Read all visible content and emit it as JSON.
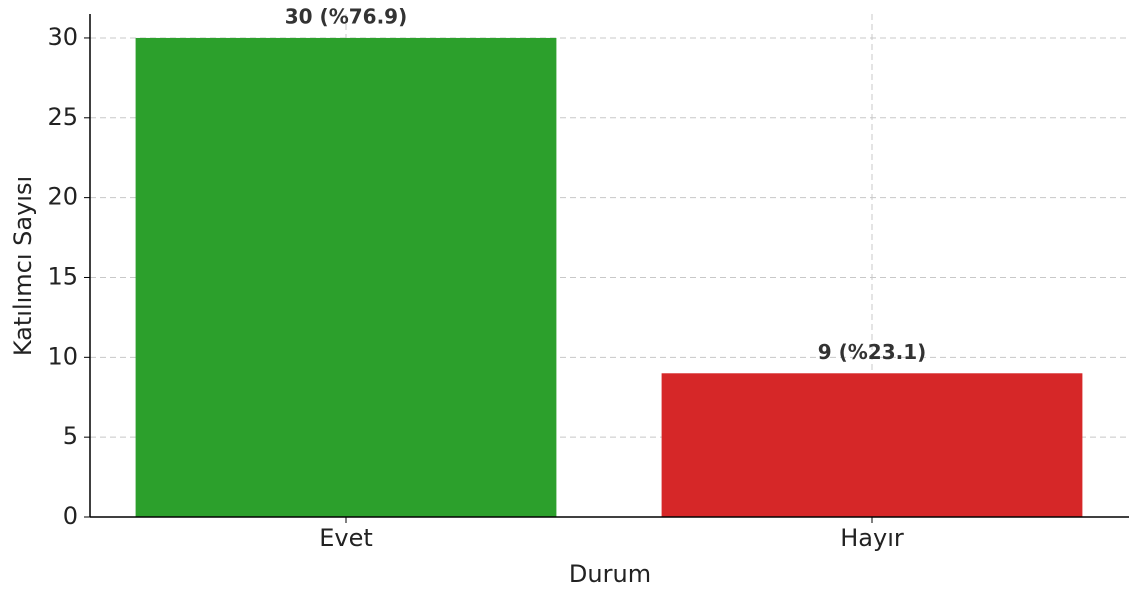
{
  "chart_data": {
    "type": "bar",
    "xlabel": "Durum",
    "ylabel": "Katılımcı Sayısı",
    "categories": [
      "Evet",
      "Hayır"
    ],
    "values": [
      30,
      9
    ],
    "value_labels": [
      "30 (%76.9)",
      "9 (%23.1)"
    ],
    "colors": [
      "#2ca02c",
      "#d62728"
    ],
    "ylim": [
      0,
      31.5
    ],
    "yticks": [
      0,
      5,
      10,
      15,
      20,
      25,
      30
    ],
    "grid": true
  }
}
